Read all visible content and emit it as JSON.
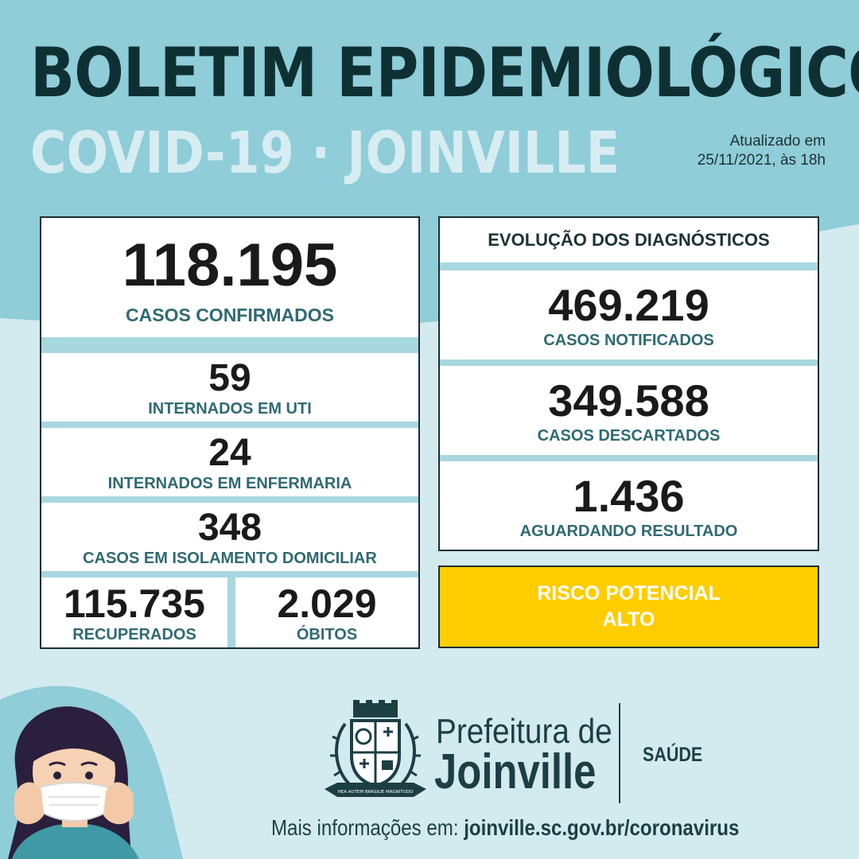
{
  "header": {
    "title": "BOLETIM EPIDEMIOLÓGICO",
    "subtitle": "COVID-19 · JOINVILLE",
    "updated_line1": "Atualizado em",
    "updated_line2": "25/11/2021, às 18h"
  },
  "cases": {
    "confirmed": {
      "value": "118.195",
      "label": "CASOS CONFIRMADOS"
    },
    "icu": {
      "value": "59",
      "label": "INTERNADOS EM UTI"
    },
    "ward": {
      "value": "24",
      "label": "INTERNADOS EM ENFERMARIA"
    },
    "home_isolation": {
      "value": "348",
      "label": "CASOS EM ISOLAMENTO DOMICILIAR"
    },
    "recovered": {
      "value": "115.735",
      "label": "RECUPERADOS"
    },
    "deaths": {
      "value": "2.029",
      "label": "ÓBITOS"
    }
  },
  "diagnostics": {
    "heading": "EVOLUÇÃO DOS DIAGNÓSTICOS",
    "notified": {
      "value": "469.219",
      "label": "CASOS NOTIFICADOS"
    },
    "discarded": {
      "value": "349.588",
      "label": "CASOS DESCARTADOS"
    },
    "pending": {
      "value": "1.436",
      "label": "AGUARDANDO RESULTADO"
    }
  },
  "risk": {
    "line1": "RISCO POTENCIAL",
    "line2": "ALTO",
    "color": "#ffcd00"
  },
  "footer": {
    "org_line1": "Prefeitura de",
    "org_line2": "Joinville",
    "department": "SAÚDE",
    "crest_motto": "HEA AUTEM BRASILIE MAGNITUDO",
    "more_info_prefix": "Mais informações em:",
    "more_info_url": "joinville.sc.gov.br/coronavirus"
  },
  "colors": {
    "background_dark": "#8fcdd8",
    "background_light": "#d3eaef",
    "title": "#0f3033",
    "label": "#2f6a72"
  },
  "icons": {
    "crest": "joinville-coat-of-arms-icon",
    "illustration": "woman-with-face-mask-icon"
  }
}
